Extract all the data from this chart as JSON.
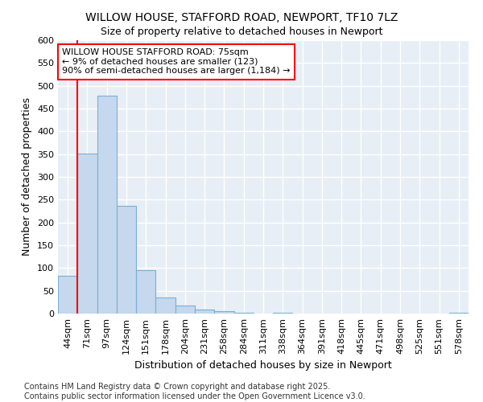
{
  "title1": "WILLOW HOUSE, STAFFORD ROAD, NEWPORT, TF10 7LZ",
  "title2": "Size of property relative to detached houses in Newport",
  "xlabel": "Distribution of detached houses by size in Newport",
  "ylabel": "Number of detached properties",
  "bar_color": "#c5d8ed",
  "bar_edge_color": "#7aafd4",
  "categories": [
    "44sqm",
    "71sqm",
    "97sqm",
    "124sqm",
    "151sqm",
    "178sqm",
    "204sqm",
    "231sqm",
    "258sqm",
    "284sqm",
    "311sqm",
    "338sqm",
    "364sqm",
    "391sqm",
    "418sqm",
    "445sqm",
    "471sqm",
    "498sqm",
    "525sqm",
    "551sqm",
    "578sqm"
  ],
  "values": [
    83,
    352,
    478,
    237,
    95,
    35,
    18,
    8,
    5,
    2,
    0,
    2,
    0,
    0,
    0,
    0,
    0,
    0,
    0,
    0,
    2
  ],
  "ylim": [
    0,
    600
  ],
  "yticks": [
    0,
    50,
    100,
    150,
    200,
    250,
    300,
    350,
    400,
    450,
    500,
    550,
    600
  ],
  "red_line_x": 0.5,
  "annotation_text": "WILLOW HOUSE STAFFORD ROAD: 75sqm\n← 9% of detached houses are smaller (123)\n90% of semi-detached houses are larger (1,184) →",
  "annotation_box_color": "white",
  "annotation_box_edge_color": "red",
  "red_line_color": "red",
  "footer1": "Contains HM Land Registry data © Crown copyright and database right 2025.",
  "footer2": "Contains public sector information licensed under the Open Government Licence v3.0.",
  "bg_color": "#ffffff",
  "plot_bg_color": "#e8eef5",
  "grid_color": "#ffffff",
  "title_fontsize": 10,
  "subtitle_fontsize": 9,
  "axis_label_fontsize": 9,
  "tick_fontsize": 8,
  "annotation_fontsize": 8,
  "footer_fontsize": 7
}
